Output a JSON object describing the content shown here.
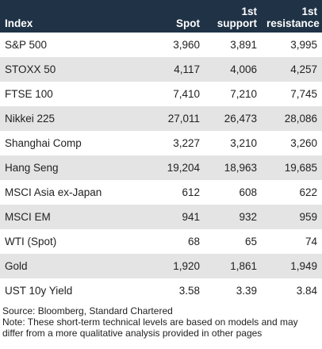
{
  "table": {
    "headers": [
      {
        "line1": "",
        "line2": "Index"
      },
      {
        "line1": "",
        "line2": "Spot"
      },
      {
        "line1": "1st",
        "line2": "support"
      },
      {
        "line1": "1st",
        "line2": "resistance"
      }
    ],
    "rows": [
      {
        "index": "S&P 500",
        "spot": "3,960",
        "support": "3,891",
        "resistance": "3,995"
      },
      {
        "index": "STOXX 50",
        "spot": "4,117",
        "support": "4,006",
        "resistance": "4,257"
      },
      {
        "index": "FTSE 100",
        "spot": "7,410",
        "support": "7,210",
        "resistance": "7,745"
      },
      {
        "index": "Nikkei 225",
        "spot": "27,011",
        "support": "26,473",
        "resistance": "28,086"
      },
      {
        "index": "Shanghai Comp",
        "spot": "3,227",
        "support": "3,210",
        "resistance": "3,260"
      },
      {
        "index": "Hang Seng",
        "spot": "19,204",
        "support": "18,963",
        "resistance": "19,685"
      },
      {
        "index": "MSCI Asia ex-Japan",
        "spot": "612",
        "support": "608",
        "resistance": "622"
      },
      {
        "index": "MSCI EM",
        "spot": "941",
        "support": "932",
        "resistance": "959"
      },
      {
        "index": "WTI (Spot)",
        "spot": "68",
        "support": "65",
        "resistance": "74"
      },
      {
        "index": "Gold",
        "spot": "1,920",
        "support": "1,861",
        "resistance": "1,949"
      },
      {
        "index": "UST 10y Yield",
        "spot": "3.58",
        "support": "3.39",
        "resistance": "3.84"
      }
    ]
  },
  "footer": {
    "source": "Source: Bloomberg, Standard Chartered",
    "note": "Note: These short-term technical levels are based on models and may differ from a more qualitative analysis provided in other pages"
  },
  "colors": {
    "header_bg": "#1f3246",
    "alt_row_bg": "#e4e4e4"
  }
}
